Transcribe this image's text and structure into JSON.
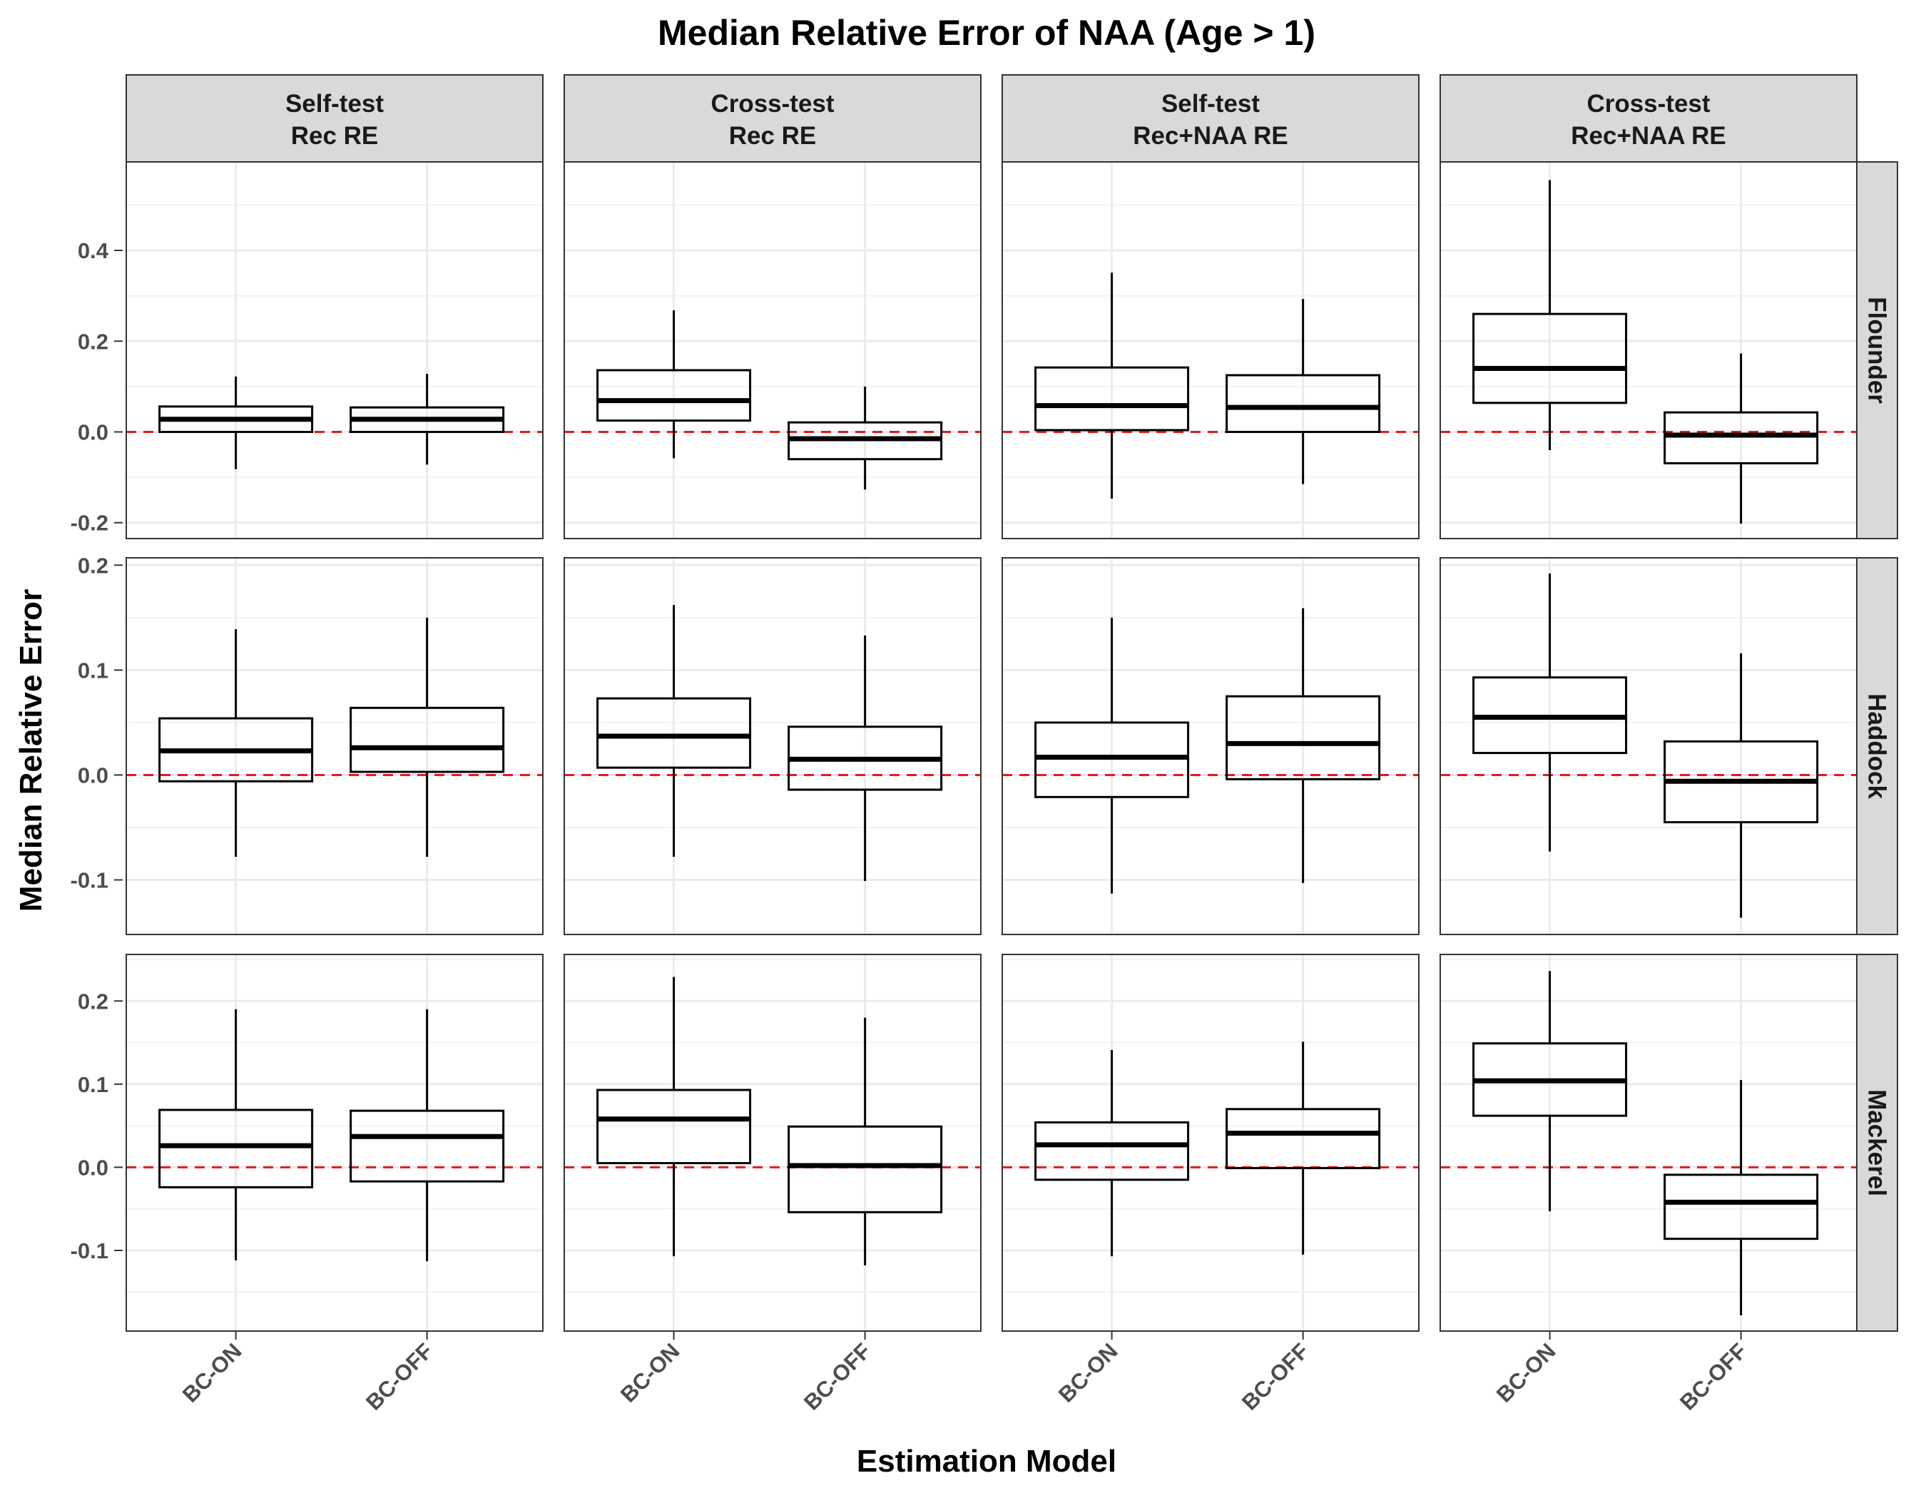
{
  "chart_data": {
    "type": "boxplot",
    "title": "Median Relative Error of NAA (Age > 1)",
    "xlabel": "Estimation Model",
    "ylabel": "Median Relative Error",
    "categories": [
      "BC-ON",
      "BC-OFF"
    ],
    "columns": [
      {
        "line1": "Self-test",
        "line2": "Rec RE"
      },
      {
        "line1": "Cross-test",
        "line2": "Rec RE"
      },
      {
        "line1": "Self-test",
        "line2": "Rec+NAA RE"
      },
      {
        "line1": "Cross-test",
        "line2": "Rec+NAA RE"
      }
    ],
    "rows": [
      {
        "name": "Flounder",
        "ylim": [
          -0.235,
          0.595
        ],
        "yticks": [
          -0.2,
          0.0,
          0.2,
          0.4
        ],
        "yticklabels": [
          "-0.2",
          "0.0",
          "0.2",
          "0.4"
        ],
        "boxes": [
          [
            {
              "lo": -0.082,
              "q1": 0.0,
              "med": 0.028,
              "q3": 0.056,
              "hi": 0.122
            },
            {
              "lo": -0.072,
              "q1": 0.0,
              "med": 0.028,
              "q3": 0.054,
              "hi": 0.128
            }
          ],
          [
            {
              "lo": -0.058,
              "q1": 0.025,
              "med": 0.069,
              "q3": 0.136,
              "hi": 0.268
            },
            {
              "lo": -0.127,
              "q1": -0.06,
              "med": -0.015,
              "q3": 0.021,
              "hi": 0.1
            }
          ],
          [
            {
              "lo": -0.147,
              "q1": 0.004,
              "med": 0.058,
              "q3": 0.142,
              "hi": 0.351
            },
            {
              "lo": -0.115,
              "q1": 0.0,
              "med": 0.054,
              "q3": 0.125,
              "hi": 0.293
            }
          ],
          [
            {
              "lo": -0.04,
              "q1": 0.064,
              "med": 0.14,
              "q3": 0.26,
              "hi": 0.555
            },
            {
              "lo": -0.202,
              "q1": -0.069,
              "med": -0.007,
              "q3": 0.043,
              "hi": 0.173
            }
          ]
        ]
      },
      {
        "name": "Haddock",
        "ylim": [
          -0.152,
          0.207
        ],
        "yticks": [
          -0.1,
          0.0,
          0.1,
          0.2
        ],
        "yticklabels": [
          "-0.1",
          "0.0",
          "0.1",
          "0.2"
        ],
        "boxes": [
          [
            {
              "lo": -0.078,
              "q1": -0.006,
              "med": 0.023,
              "q3": 0.054,
              "hi": 0.139
            },
            {
              "lo": -0.078,
              "q1": 0.003,
              "med": 0.026,
              "q3": 0.064,
              "hi": 0.15
            }
          ],
          [
            {
              "lo": -0.078,
              "q1": 0.007,
              "med": 0.037,
              "q3": 0.073,
              "hi": 0.162
            },
            {
              "lo": -0.101,
              "q1": -0.014,
              "med": 0.015,
              "q3": 0.046,
              "hi": 0.133
            }
          ],
          [
            {
              "lo": -0.113,
              "q1": -0.021,
              "med": 0.017,
              "q3": 0.05,
              "hi": 0.15
            },
            {
              "lo": -0.103,
              "q1": -0.004,
              "med": 0.03,
              "q3": 0.075,
              "hi": 0.159
            }
          ],
          [
            {
              "lo": -0.073,
              "q1": 0.021,
              "med": 0.055,
              "q3": 0.093,
              "hi": 0.192
            },
            {
              "lo": -0.136,
              "q1": -0.045,
              "med": -0.006,
              "q3": 0.032,
              "hi": 0.116
            }
          ]
        ]
      },
      {
        "name": "Mackerel",
        "ylim": [
          -0.197,
          0.256
        ],
        "yticks": [
          -0.1,
          0.0,
          0.1,
          0.2
        ],
        "yticklabels": [
          "-0.1",
          "0.0",
          "0.1",
          "0.2"
        ],
        "boxes": [
          [
            {
              "lo": -0.112,
              "q1": -0.024,
              "med": 0.026,
              "q3": 0.069,
              "hi": 0.19
            },
            {
              "lo": -0.113,
              "q1": -0.017,
              "med": 0.037,
              "q3": 0.068,
              "hi": 0.19
            }
          ],
          [
            {
              "lo": -0.107,
              "q1": 0.005,
              "med": 0.058,
              "q3": 0.093,
              "hi": 0.229
            },
            {
              "lo": -0.118,
              "q1": -0.054,
              "med": 0.002,
              "q3": 0.049,
              "hi": 0.18
            }
          ],
          [
            {
              "lo": -0.107,
              "q1": -0.015,
              "med": 0.027,
              "q3": 0.054,
              "hi": 0.141
            },
            {
              "lo": -0.105,
              "q1": -0.001,
              "med": 0.041,
              "q3": 0.07,
              "hi": 0.151
            }
          ],
          [
            {
              "lo": -0.053,
              "q1": 0.062,
              "med": 0.104,
              "q3": 0.149,
              "hi": 0.236
            },
            {
              "lo": -0.178,
              "q1": -0.086,
              "med": -0.042,
              "q3": -0.009,
              "hi": 0.105
            }
          ]
        ]
      }
    ],
    "reference_line": {
      "y": 0.0,
      "color": "#e41a1c",
      "style": "dashed"
    },
    "grid": true,
    "colors": {
      "box_fill": "#ffffff",
      "box_stroke": "#000000",
      "strip_fill": "#d9d9d9",
      "grid_major": "#ebebeb",
      "grid_minor": "#f2f2f2",
      "panel_border": "#333333"
    }
  }
}
